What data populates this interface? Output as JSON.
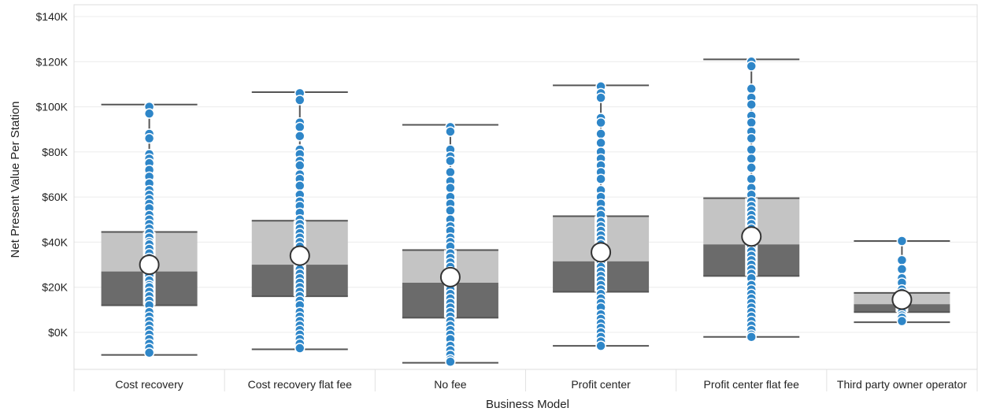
{
  "chart_data": {
    "type": "box",
    "xlabel": "Business Model",
    "ylabel": "Net Present Value Per Station",
    "ylim": [
      -15000,
      145000
    ],
    "y_ticks": [
      0,
      20000,
      40000,
      60000,
      80000,
      100000,
      120000,
      140000
    ],
    "y_tick_labels": [
      "$0K",
      "$20K",
      "$40K",
      "$60K",
      "$80K",
      "$100K",
      "$120K",
      "$140K"
    ],
    "grid": "horizontal",
    "categories": [
      "Cost recovery",
      "Cost recovery flat fee",
      "No fee",
      "Profit center",
      "Profit center flat fee",
      "Third party owner operator"
    ],
    "colors": {
      "upper_box": "#c4c4c4",
      "lower_box": "#6b6b6b",
      "point": "#2e86c8",
      "point_outline": "#ffffff",
      "whisker": "#555555",
      "gridline": "#ececec",
      "mean_marker_fill": "#ffffff",
      "mean_marker_outline": "#333333"
    },
    "boxes": [
      {
        "category": "Cost recovery",
        "min": -10000,
        "q1": 12000,
        "median": 27000,
        "q3": 44500,
        "max": 101000,
        "mean": 30000,
        "points": [
          100000,
          97000,
          88000,
          86000,
          79000,
          77000,
          75000,
          72000,
          69000,
          66000,
          63000,
          61000,
          59000,
          57000,
          55000,
          52000,
          50000,
          48000,
          46000,
          44000,
          42000,
          40000,
          39000,
          37000,
          35000,
          33000,
          31000,
          29000,
          27000,
          25000,
          23000,
          21000,
          20000,
          18000,
          16000,
          14000,
          12000,
          9000,
          7000,
          5000,
          3000,
          1000,
          -1000,
          -3000,
          -5000,
          -7000,
          -9000
        ]
      },
      {
        "category": "Cost recovery flat fee",
        "min": -7500,
        "q1": 16000,
        "median": 30000,
        "q3": 49500,
        "max": 106500,
        "mean": 34000,
        "points": [
          106000,
          103000,
          93000,
          91000,
          87000,
          81000,
          79000,
          76000,
          74000,
          70000,
          68000,
          65000,
          61000,
          58000,
          56000,
          53000,
          50000,
          48000,
          46000,
          44000,
          42000,
          40000,
          38000,
          36000,
          34000,
          32000,
          30000,
          28000,
          26000,
          24000,
          22000,
          20000,
          18000,
          16000,
          14000,
          12000,
          9000,
          7000,
          5000,
          3000,
          1000,
          -1000,
          -3000,
          -5000,
          -7000
        ]
      },
      {
        "category": "No fee",
        "min": -13500,
        "q1": 6500,
        "median": 22000,
        "q3": 36500,
        "max": 92000,
        "mean": 24500,
        "points": [
          91000,
          89000,
          81000,
          78000,
          76000,
          71000,
          67000,
          64000,
          60000,
          57000,
          54000,
          50000,
          47000,
          45000,
          42000,
          40000,
          38000,
          35000,
          33000,
          31000,
          29000,
          27000,
          25000,
          23000,
          21000,
          19000,
          17000,
          15000,
          13000,
          11000,
          9000,
          7000,
          5000,
          3000,
          1000,
          -1000,
          -3000,
          -6000,
          -8000,
          -10000,
          -12000,
          -13000
        ]
      },
      {
        "category": "Profit center",
        "min": -6000,
        "q1": 18000,
        "median": 31500,
        "q3": 51500,
        "max": 109500,
        "mean": 35500,
        "points": [
          109000,
          106000,
          104000,
          95000,
          93000,
          88000,
          84000,
          80000,
          77000,
          74000,
          71000,
          68000,
          63000,
          60000,
          57000,
          54000,
          52000,
          49000,
          47000,
          45000,
          43000,
          41000,
          39000,
          37000,
          35000,
          33000,
          31000,
          29000,
          27000,
          25000,
          23000,
          21000,
          19000,
          17000,
          15000,
          13000,
          11000,
          8000,
          6000,
          4000,
          2000,
          0,
          -2000,
          -4000,
          -6000
        ]
      },
      {
        "category": "Profit center flat fee",
        "min": -2000,
        "q1": 25000,
        "median": 39000,
        "q3": 59500,
        "max": 121000,
        "mean": 42500,
        "points": [
          120000,
          118000,
          108000,
          104000,
          101000,
          96000,
          93000,
          89000,
          86000,
          81000,
          77000,
          73000,
          68000,
          64000,
          61000,
          58000,
          56000,
          54000,
          52000,
          50000,
          48000,
          46000,
          44000,
          42000,
          40000,
          38000,
          36000,
          34000,
          32000,
          30000,
          28000,
          26000,
          24000,
          21000,
          19000,
          17000,
          15000,
          13000,
          11000,
          9000,
          7000,
          5000,
          3000,
          1000,
          -1000,
          -2000
        ]
      },
      {
        "category": "Third party owner operator",
        "min": 4500,
        "q1": 9000,
        "median": 12500,
        "q3": 17500,
        "max": 40500,
        "mean": 14500,
        "points": [
          40500,
          32000,
          28000,
          24000,
          22000,
          19000,
          17500,
          16000,
          15000,
          14000,
          13000,
          12000,
          11000,
          10000,
          9000,
          7500,
          6500,
          5000
        ]
      }
    ]
  }
}
